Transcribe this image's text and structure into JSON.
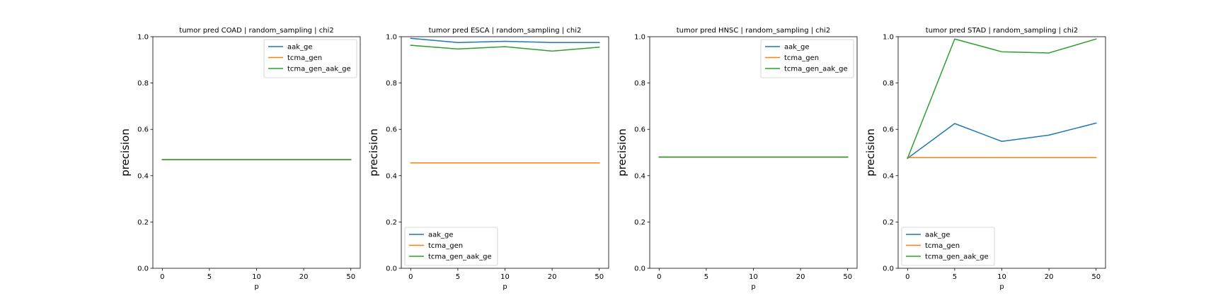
{
  "chart_data": [
    {
      "type": "line",
      "title": "tumor pred COAD | random_sampling | chi2",
      "xlabel": "p",
      "ylabel": "precision",
      "ylim": [
        0,
        1
      ],
      "categories": [
        "0",
        "5",
        "10",
        "20",
        "50"
      ],
      "yticks": [
        "0.0",
        "0.2",
        "0.4",
        "0.6",
        "0.8",
        "1.0"
      ],
      "legend": "top-right",
      "grid": false,
      "series": [
        {
          "name": "aak_ge",
          "color": "#1f77b4",
          "values": [
            0.469,
            0.469,
            0.469,
            0.469,
            0.469
          ]
        },
        {
          "name": "tcma_gen",
          "color": "#ff7f0e",
          "values": [
            0.469,
            0.469,
            0.469,
            0.469,
            0.469
          ]
        },
        {
          "name": "tcma_gen_aak_ge",
          "color": "#2ca02c",
          "values": [
            0.469,
            0.469,
            0.469,
            0.469,
            0.469
          ]
        }
      ]
    },
    {
      "type": "line",
      "title": "tumor pred ESCA | random_sampling | chi2",
      "xlabel": "p",
      "ylabel": "precision",
      "ylim": [
        0,
        1
      ],
      "categories": [
        "0",
        "5",
        "10",
        "20",
        "50"
      ],
      "yticks": [
        "0.0",
        "0.2",
        "0.4",
        "0.6",
        "0.8",
        "1.0"
      ],
      "legend": "bottom-left",
      "grid": false,
      "series": [
        {
          "name": "aak_ge",
          "color": "#1f77b4",
          "values": [
            0.993,
            0.975,
            0.98,
            0.975,
            0.975
          ]
        },
        {
          "name": "tcma_gen",
          "color": "#ff7f0e",
          "values": [
            0.455,
            0.455,
            0.455,
            0.455,
            0.455
          ]
        },
        {
          "name": "tcma_gen_aak_ge",
          "color": "#2ca02c",
          "values": [
            0.963,
            0.947,
            0.957,
            0.938,
            0.955
          ]
        }
      ]
    },
    {
      "type": "line",
      "title": "tumor pred HNSC | random_sampling | chi2",
      "xlabel": "p",
      "ylabel": "precision",
      "ylim": [
        0,
        1
      ],
      "categories": [
        "0",
        "5",
        "10",
        "20",
        "50"
      ],
      "yticks": [
        "0.0",
        "0.2",
        "0.4",
        "0.6",
        "0.8",
        "1.0"
      ],
      "legend": "top-right",
      "grid": false,
      "series": [
        {
          "name": "aak_ge",
          "color": "#1f77b4",
          "values": [
            0.48,
            0.48,
            0.48,
            0.48,
            0.48
          ]
        },
        {
          "name": "tcma_gen",
          "color": "#ff7f0e",
          "values": [
            0.48,
            0.48,
            0.48,
            0.48,
            0.48
          ]
        },
        {
          "name": "tcma_gen_aak_ge",
          "color": "#2ca02c",
          "values": [
            0.48,
            0.48,
            0.48,
            0.48,
            0.48
          ]
        }
      ]
    },
    {
      "type": "line",
      "title": "tumor pred STAD | random_sampling | chi2",
      "xlabel": "p",
      "ylabel": "precision",
      "ylim": [
        0,
        1
      ],
      "categories": [
        "0",
        "5",
        "10",
        "20",
        "50"
      ],
      "yticks": [
        "0.0",
        "0.2",
        "0.4",
        "0.6",
        "0.8",
        "1.0"
      ],
      "legend": "bottom-left",
      "grid": false,
      "series": [
        {
          "name": "aak_ge",
          "color": "#1f77b4",
          "values": [
            0.475,
            0.625,
            0.548,
            0.575,
            0.627
          ]
        },
        {
          "name": "tcma_gen",
          "color": "#ff7f0e",
          "values": [
            0.478,
            0.478,
            0.478,
            0.478,
            0.478
          ]
        },
        {
          "name": "tcma_gen_aak_ge",
          "color": "#2ca02c",
          "values": [
            0.475,
            0.99,
            0.935,
            0.93,
            0.99
          ]
        }
      ]
    }
  ]
}
